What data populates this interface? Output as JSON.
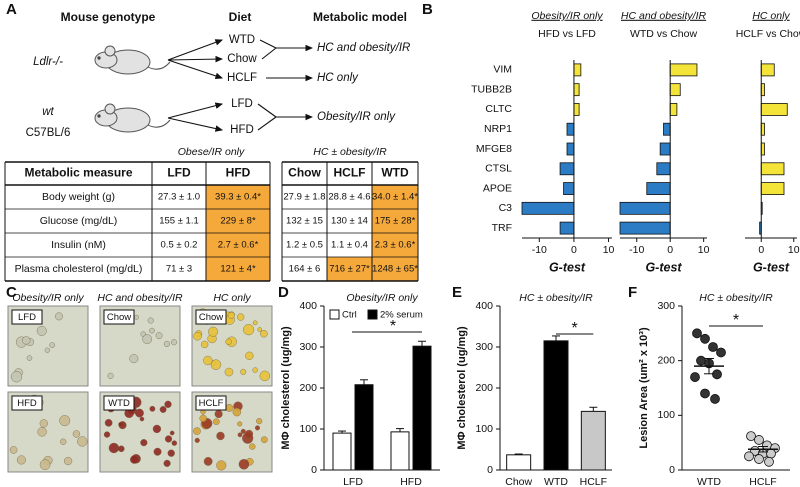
{
  "panel_labels": [
    "A",
    "B",
    "C",
    "D",
    "E",
    "F"
  ],
  "panel_a": {
    "headers": [
      "Mouse genotype",
      "Diet",
      "Metabolic model"
    ],
    "groups": [
      {
        "genotype": "Ldlr-/-",
        "diets": [
          "WTD",
          "Chow",
          "HCLF"
        ],
        "models": [
          "HC and obesity/IR",
          "HC only"
        ]
      },
      {
        "genotype": "wt",
        "strain": "C57BL/6",
        "diets": [
          "LFD",
          "HFD"
        ],
        "models": [
          "Obesity/IR only"
        ]
      }
    ],
    "table": {
      "group_headers": [
        "Obese/IR only",
        "HC ± obesity/IR"
      ],
      "columns": [
        "Metabolic measure",
        "LFD",
        "HFD",
        "Chow",
        "HCLF",
        "WTD"
      ],
      "rows": [
        [
          "Body weight (g)",
          "27.3 ± 1.0",
          "39.3 ± 0.4*",
          "27.9 ± 1.8",
          "28.8 ± 4.6",
          "34.0 ± 1.4*"
        ],
        [
          "Glucose (mg/dL)",
          "155 ± 1.1",
          "229 ± 8*",
          "132 ± 15",
          "130 ± 14",
          "175 ± 28*"
        ],
        [
          "Insulin (nM)",
          "0.5 ± 0.2",
          "2.7 ± 0.6*",
          "1.2 ± 0.5",
          "1.1 ± 0.4",
          "2.3 ± 0.6*"
        ],
        [
          "Plasma cholesterol (mg/dL)",
          "71 ± 3",
          "121 ± 4*",
          "164 ± 6",
          "716 ± 27*",
          "1248 ± 65*"
        ]
      ],
      "highlight": [
        [
          0,
          2
        ],
        [
          1,
          2
        ],
        [
          2,
          2
        ],
        [
          3,
          2
        ],
        [
          0,
          5
        ],
        [
          1,
          5
        ],
        [
          2,
          5
        ],
        [
          3,
          5
        ],
        [
          3,
          4
        ]
      ],
      "highlight_color": "#f6a93b"
    }
  },
  "panel_c": {
    "headers": [
      "Obesity/IR only",
      "HC and obesity/IR",
      "HC only"
    ],
    "images": [
      "LFD",
      "Chow",
      "Chow",
      "HFD",
      "WTD",
      "HCLF"
    ]
  },
  "chart_data": [
    {
      "type": "hbar",
      "title": "Obesity/IR only",
      "subtitle": "HFD vs LFD",
      "categories": [
        "VIM",
        "TUBB2B",
        "CLTC",
        "NRP1",
        "MFGE8",
        "CTSL",
        "APOE",
        "C3",
        "TRF"
      ],
      "values": [
        2,
        1.5,
        1.5,
        -2,
        -2,
        -4,
        -3,
        -15,
        -4
      ],
      "xlim": [
        -15,
        11
      ],
      "xticks": [
        -10,
        0,
        10
      ],
      "xlabel": "G-test",
      "positive_color": "#f4e43a",
      "negative_color": "#2b7cc4"
    },
    {
      "type": "hbar",
      "title": "HC and obesity/IR",
      "subtitle": "WTD vs Chow",
      "values": [
        8,
        3,
        2,
        -2,
        -3,
        -4,
        -7,
        -15,
        -15
      ],
      "xlim": [
        -15,
        11
      ],
      "xticks": [
        -10,
        0,
        10
      ],
      "xlabel": "G-test",
      "positive_color": "#f4e43a",
      "negative_color": "#2b7cc4"
    },
    {
      "type": "hbar",
      "title": "HC only",
      "subtitle": "HCLF vs Chow",
      "values": [
        4,
        1,
        8,
        1,
        1,
        7,
        7,
        0.3,
        -0.5
      ],
      "xlim": [
        -5,
        11
      ],
      "xticks": [
        0,
        10
      ],
      "xlabel": "G-test",
      "positive_color": "#f4e43a",
      "negative_color": "#2b7cc4"
    },
    {
      "type": "bar",
      "title": "Obesity/IR only",
      "ylabel": "MΦ cholesterol (ug/mg)",
      "categories": [
        "LFD",
        "HFD"
      ],
      "series": [
        {
          "name": "Ctrl",
          "color": "#ffffff",
          "values": [
            90,
            93
          ],
          "errors": [
            5,
            8
          ]
        },
        {
          "name": "2% serum",
          "color": "#000000",
          "values": [
            208,
            302
          ],
          "errors": [
            12,
            12
          ]
        }
      ],
      "ylim": [
        0,
        400
      ],
      "yticks": [
        0,
        100,
        200,
        300,
        400
      ],
      "annotation": "*"
    },
    {
      "type": "bar",
      "title": "HC ± obesity/IR",
      "ylabel": "MΦ cholesterol (ug/mg)",
      "categories": [
        "Chow",
        "WTD",
        "HCLF"
      ],
      "values": [
        37,
        315,
        143
      ],
      "errors": [
        2,
        12,
        10
      ],
      "colors": [
        "#ffffff",
        "#000000",
        "#c8c8c8"
      ],
      "ylim": [
        0,
        400
      ],
      "yticks": [
        0,
        100,
        200,
        300,
        400
      ],
      "annotation": "*"
    },
    {
      "type": "strip",
      "title": "HC ± obesity/IR",
      "ylabel": "Lesion Area (um² x 10³)",
      "categories": [
        "WTD",
        "HCLF"
      ],
      "groups": [
        {
          "color": "#333333",
          "values": [
            250,
            240,
            225,
            215,
            200,
            195,
            175,
            170,
            140,
            130
          ]
        },
        {
          "color": "#cccccc",
          "values": [
            62,
            55,
            45,
            40,
            35,
            30,
            30,
            25,
            20,
            15
          ]
        }
      ],
      "means": [
        190,
        38
      ],
      "sems": [
        14,
        5
      ],
      "ylim": [
        0,
        300
      ],
      "yticks": [
        0,
        100,
        200,
        300
      ],
      "annotation": "*"
    }
  ]
}
